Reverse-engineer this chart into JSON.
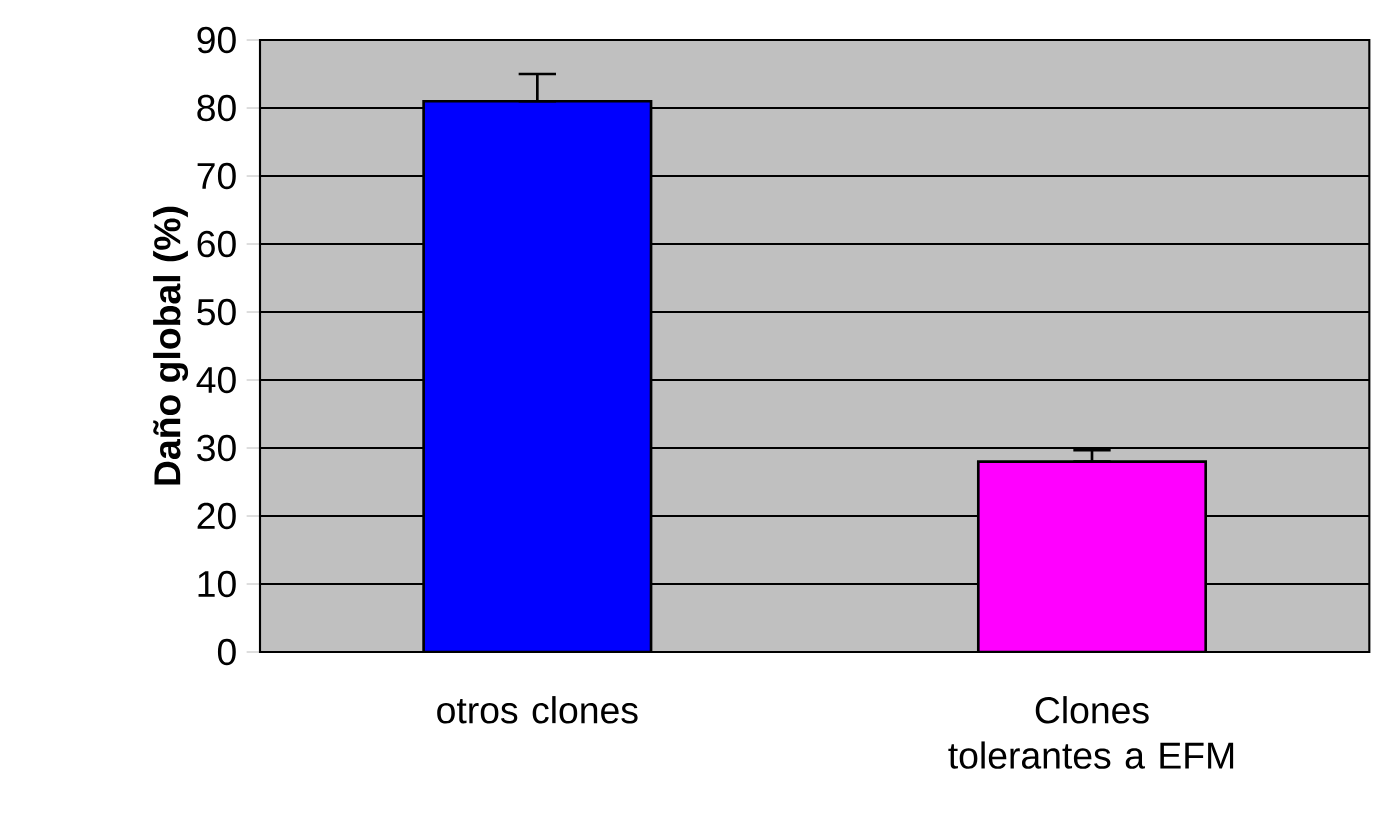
{
  "chart_data": {
    "type": "bar",
    "ylabel": "Daño global (%)",
    "categories": [
      "otros clones",
      "Clones tolerantes a EFM"
    ],
    "values": [
      81,
      28
    ],
    "colors": [
      "#0000ff",
      "#ff00ff"
    ],
    "errors": [
      [
        81,
        85
      ],
      [
        28,
        29.7
      ]
    ],
    "ylim": [
      0,
      90
    ],
    "yticks": [
      0,
      10,
      20,
      30,
      40,
      50,
      60,
      70,
      80,
      90
    ],
    "grid": "y"
  }
}
